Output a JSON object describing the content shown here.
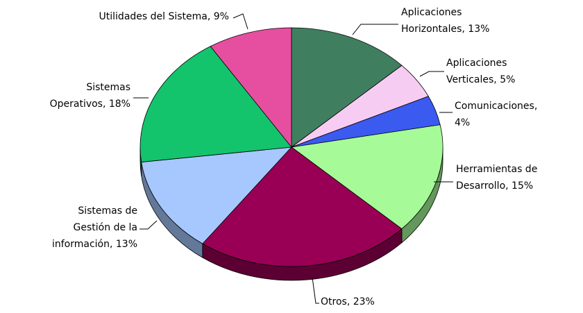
{
  "chart_data": {
    "type": "pie3d",
    "slices": [
      {
        "label_lines": [
          "Aplicaciones",
          "Horizontales, 13%"
        ],
        "value": 13,
        "color": "#3f7f5f"
      },
      {
        "label_lines": [
          "Aplicaciones",
          "Verticales, 5%"
        ],
        "value": 5,
        "color": "#f7ccf2"
      },
      {
        "label_lines": [
          "Comunicaciones,",
          "4%"
        ],
        "value": 4,
        "color": "#3a5af0"
      },
      {
        "label_lines": [
          "Herramientas de",
          "Desarrollo, 15%"
        ],
        "value": 15,
        "color": "#a6fb98"
      },
      {
        "label_lines": [
          "Otros, 23%"
        ],
        "value": 23,
        "color": "#990055"
      },
      {
        "label_lines": [
          "Sistemas de",
          "Gestión de la",
          "información, 13%"
        ],
        "value": 13,
        "color": "#a6c8ff"
      },
      {
        "label_lines": [
          "Sistemas",
          "Operativos, 18%"
        ],
        "value": 18,
        "color": "#14c46c"
      },
      {
        "label_lines": [
          "Utilidades del Sistema, 9%"
        ],
        "value": 9,
        "color": "#e64fa0"
      }
    ]
  }
}
